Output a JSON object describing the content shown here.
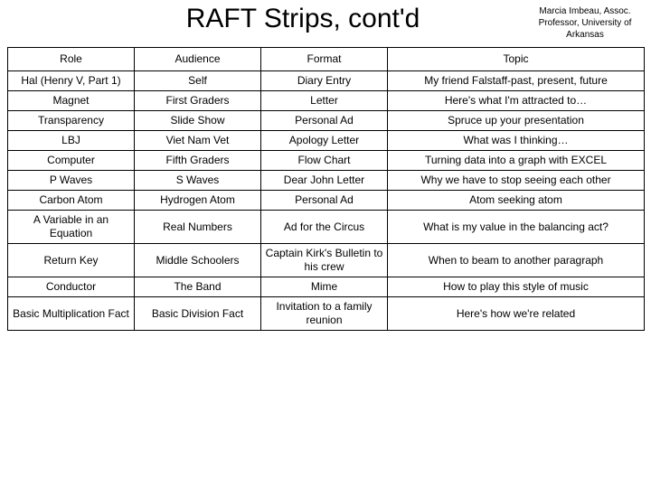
{
  "header": {
    "title": "RAFT Strips, cont'd",
    "credit": "Marcia Imbeau, Assoc. Professor, University of Arkansas"
  },
  "table": {
    "columns": [
      "Role",
      "Audience",
      "Format",
      "Topic"
    ],
    "rows": [
      [
        "Hal (Henry V, Part 1)",
        "Self",
        "Diary Entry",
        "My friend Falstaff-past, present, future"
      ],
      [
        "Magnet",
        "First Graders",
        "Letter",
        "Here's what I'm attracted to…"
      ],
      [
        "Transparency",
        "Slide Show",
        "Personal Ad",
        "Spruce up your presentation"
      ],
      [
        "LBJ",
        "Viet Nam Vet",
        "Apology Letter",
        "What was I thinking…"
      ],
      [
        "Computer",
        "Fifth Graders",
        "Flow Chart",
        "Turning data into a graph with EXCEL"
      ],
      [
        "P Waves",
        "S Waves",
        "Dear John Letter",
        "Why we have to stop seeing each other"
      ],
      [
        "Carbon Atom",
        "Hydrogen Atom",
        "Personal Ad",
        "Atom seeking atom"
      ],
      [
        "A Variable in an Equation",
        "Real Numbers",
        "Ad for the Circus",
        "What is my value in the balancing act?"
      ],
      [
        "Return Key",
        "Middle Schoolers",
        "Captain Kirk's Bulletin to his crew",
        "When to beam to another paragraph"
      ],
      [
        "Conductor",
        "The Band",
        "Mime",
        "How to play this style of music"
      ],
      [
        "Basic Multiplication Fact",
        "Basic Division Fact",
        "Invitation to a family reunion",
        "Here's how we're related"
      ]
    ]
  }
}
